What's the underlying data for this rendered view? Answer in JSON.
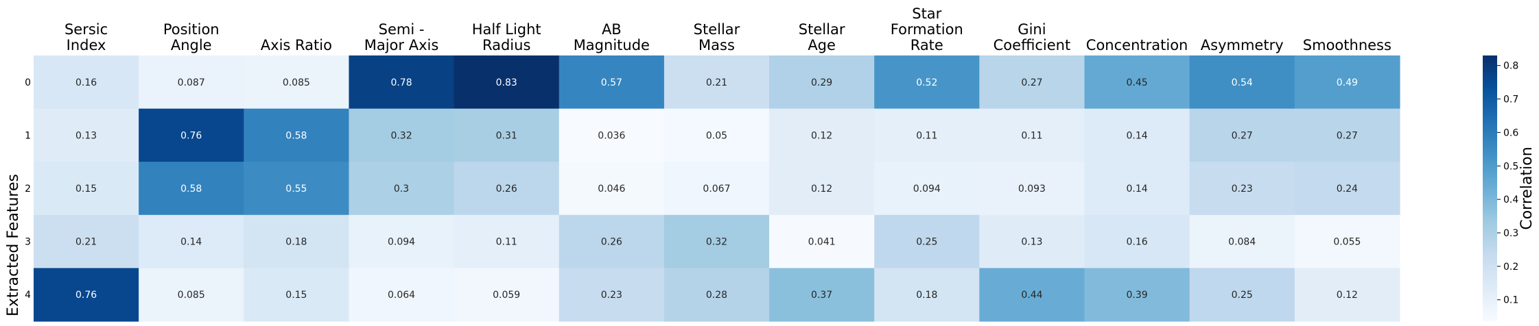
{
  "chart_data": {
    "type": "heatmap",
    "title": "",
    "xlabel": "",
    "ylabel": "Extracted Features",
    "colorbar_label": "Correlation",
    "colormap": "Blues",
    "vmin": 0.036,
    "vmax": 0.83,
    "colorbar_ticks": [
      "0.1",
      "0.2",
      "0.3",
      "0.4",
      "0.5",
      "0.6",
      "0.7",
      "0.8"
    ],
    "columns": [
      [
        "Sersic",
        "Index"
      ],
      [
        "Position",
        "Angle"
      ],
      [
        "Axis Ratio"
      ],
      [
        "Semi -",
        "Major Axis"
      ],
      [
        "Half Light",
        "Radius"
      ],
      [
        "AB",
        "Magnitude"
      ],
      [
        "Stellar",
        "Mass"
      ],
      [
        "Stellar",
        "Age"
      ],
      [
        "Star",
        "Formation",
        "Rate"
      ],
      [
        "Gini",
        "Coefficient"
      ],
      [
        "Concentration"
      ],
      [
        "Asymmetry"
      ],
      [
        "Smoothness"
      ]
    ],
    "rows": [
      "0",
      "1",
      "2",
      "3",
      "4"
    ],
    "cells": [
      [
        "0.16",
        "0.087",
        "0.085",
        "0.78",
        "0.83",
        "0.57",
        "0.21",
        "0.29",
        "0.52",
        "0.27",
        "0.45",
        "0.54",
        "0.49"
      ],
      [
        "0.13",
        "0.76",
        "0.58",
        "0.32",
        "0.31",
        "0.036",
        "0.05",
        "0.12",
        "0.11",
        "0.11",
        "0.14",
        "0.27",
        "0.27"
      ],
      [
        "0.15",
        "0.58",
        "0.55",
        "0.3",
        "0.26",
        "0.046",
        "0.067",
        "0.12",
        "0.094",
        "0.093",
        "0.14",
        "0.23",
        "0.24"
      ],
      [
        "0.21",
        "0.14",
        "0.18",
        "0.094",
        "0.11",
        "0.26",
        "0.32",
        "0.041",
        "0.25",
        "0.13",
        "0.16",
        "0.084",
        "0.055"
      ],
      [
        "0.76",
        "0.085",
        "0.15",
        "0.064",
        "0.059",
        "0.23",
        "0.28",
        "0.37",
        "0.18",
        "0.44",
        "0.39",
        "0.25",
        "0.12"
      ]
    ]
  }
}
